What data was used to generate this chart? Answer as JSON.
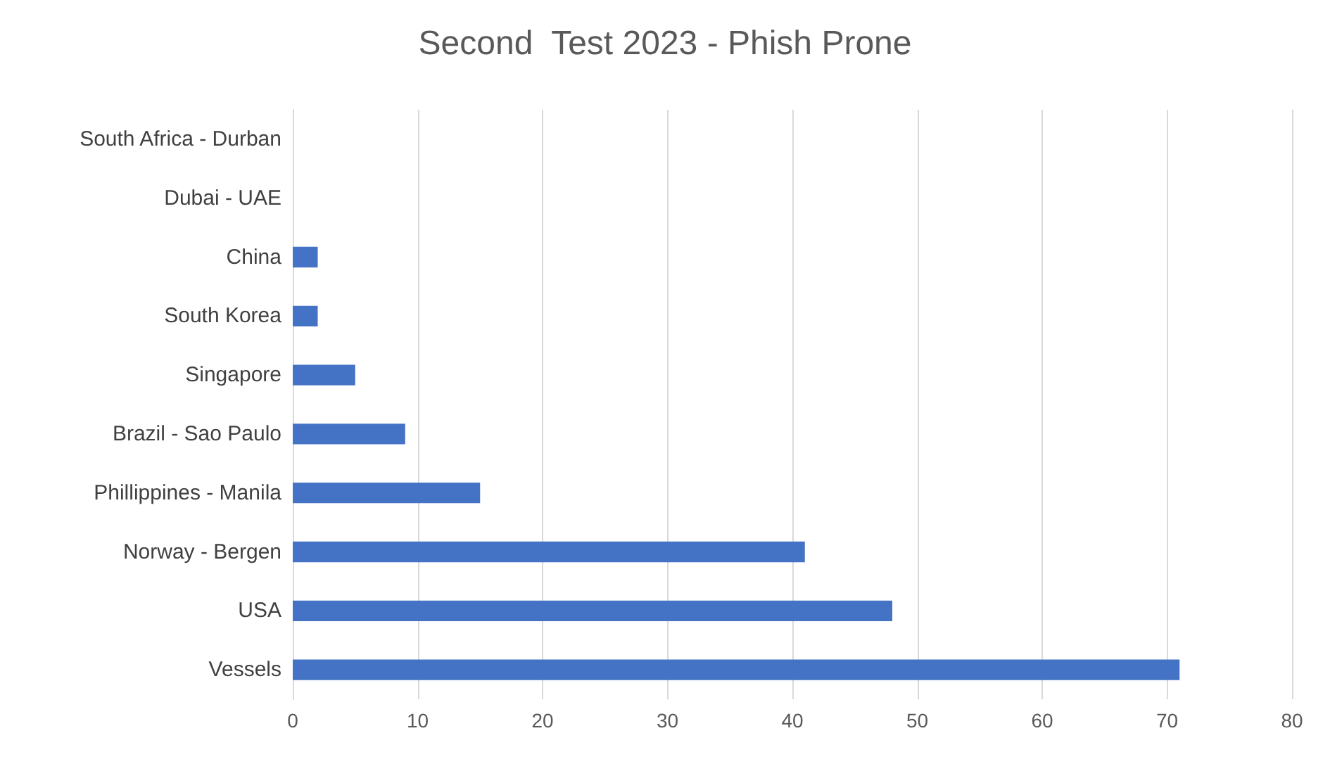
{
  "chart_data": {
    "type": "bar",
    "orientation": "horizontal",
    "title": "Second  Test 2023 - Phish Prone",
    "categories": [
      "South Africa - Durban",
      "Dubai - UAE",
      "China",
      "South Korea",
      "Singapore",
      "Brazil - Sao Paulo",
      "Phillippines - Manila",
      "Norway - Bergen",
      "USA",
      "Vessels"
    ],
    "values": [
      0,
      0,
      2,
      2,
      5,
      9,
      15,
      41,
      48,
      71
    ],
    "color": "#4472c4",
    "xlim": [
      0,
      80
    ],
    "xticks": [
      0,
      10,
      20,
      30,
      40,
      50,
      60,
      70,
      80
    ],
    "grid": "x"
  }
}
